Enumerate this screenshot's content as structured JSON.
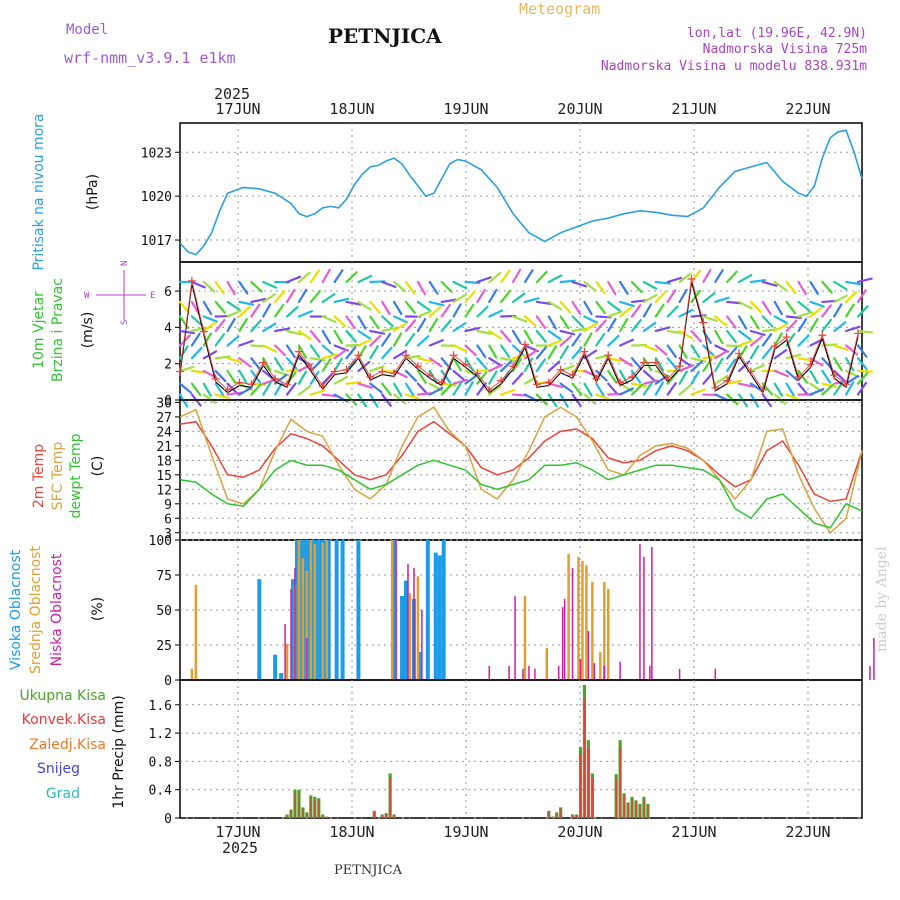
{
  "header": {
    "model_label": "Model",
    "model_name": "wrf-nmm_v3.9.1 e1km",
    "station_title": "PETNJICA",
    "app_title": "Meteogram",
    "coords": "lon,lat (19.96E, 42.9N)",
    "elevation": "Nadmorska Visina 725m",
    "model_elevation": "Nadmorska Visina u modelu 838.931m",
    "footer_station": "PETNJICA",
    "watermark": "made by Angel"
  },
  "colors": {
    "pressure": "#2b9fe0",
    "temp2m": "#e8453c",
    "sfc": "#d9a441",
    "dewpt": "#2fc52f",
    "high_cloud": "#1e9be6",
    "mid_cloud": "#e0a030",
    "low_cloud": "#cc1f9f",
    "total_precip": "#4aa628",
    "conv_precip": "#e63c3c",
    "strat_precip": "#e87a24",
    "snow": "#4444cc",
    "graupel": "#2fb8b8",
    "model_label": "#9b5cd1",
    "app_title": "#e8b860",
    "coords_text": "#a844c8"
  },
  "chart_data": [
    {
      "type": "line",
      "panel": "pressure",
      "xticks_top": [
        "17JUN",
        "18JUN",
        "19JUN",
        "20JUN",
        "21JUN",
        "22JUN"
      ],
      "year_label": "2025",
      "ylabel": [
        "Pritisak na nivou mora",
        "(hPa)"
      ],
      "yticks": [
        1017,
        1020,
        1023
      ],
      "ylim": [
        1015.5,
        1025
      ],
      "x": [
        0,
        2,
        4,
        6,
        8,
        10,
        12,
        16,
        20,
        24,
        28,
        30,
        32,
        34,
        36,
        38,
        40,
        42,
        44,
        46,
        48,
        50,
        52,
        54,
        56,
        58,
        60,
        62,
        64,
        66,
        68,
        70,
        72,
        76,
        80,
        84,
        88,
        92,
        96,
        100,
        104,
        108,
        112,
        116,
        120,
        124,
        128,
        132,
        136,
        140,
        144,
        148,
        152,
        156,
        158,
        160,
        162,
        164,
        166,
        168,
        170,
        172,
        144.5
      ],
      "series": [
        {
          "name": "pressure",
          "values": [
            1016.8,
            1016.2,
            1016.0,
            1016.6,
            1017.5,
            1019.0,
            1020.2,
            1020.6,
            1020.5,
            1020.2,
            1019.5,
            1018.8,
            1018.6,
            1018.8,
            1019.2,
            1019.3,
            1019.2,
            1019.8,
            1020.8,
            1021.5,
            1022.0,
            1022.1,
            1022.4,
            1022.6,
            1022.2,
            1021.4,
            1020.7,
            1020.0,
            1020.2,
            1021.2,
            1022.2,
            1022.5,
            1022.4,
            1021.8,
            1020.6,
            1018.8,
            1017.5,
            1016.9,
            1017.5,
            1017.9,
            1018.3,
            1018.5,
            1018.8,
            1019.0,
            1018.9,
            1018.7,
            1018.6,
            1019.2,
            1020.6,
            1021.7,
            1022.0,
            1022.3,
            1021.0,
            1020.2,
            1020.0,
            1020.7,
            1022.6,
            1024.0,
            1024.4,
            1024.5,
            1023.0,
            1021.2,
            1021.8
          ]
        }
      ]
    },
    {
      "type": "line",
      "panel": "wind",
      "ylabel": [
        "10m Vjetar",
        "Brzina i Pravac",
        "(m/s)"
      ],
      "direction_legend": [
        "W",
        "E",
        "S",
        "N"
      ],
      "yticks": [
        0,
        2,
        4,
        6
      ],
      "ylim": [
        0,
        7.6
      ],
      "x": [
        0,
        3,
        6,
        9,
        12,
        15,
        18,
        21,
        24,
        27,
        30,
        33,
        36,
        39,
        42,
        45,
        48,
        51,
        54,
        57,
        60,
        63,
        66,
        69,
        72,
        75,
        78,
        81,
        84,
        87,
        90,
        93,
        96,
        99,
        102,
        105,
        108,
        111,
        114,
        117,
        120,
        123,
        126,
        129,
        132,
        135,
        138,
        141,
        144,
        147,
        150,
        153,
        156,
        159,
        162,
        165,
        168,
        171
      ],
      "series": [
        {
          "name": "speed",
          "values": [
            1.4,
            6.4,
            3.6,
            1.0,
            0.4,
            0.8,
            0.7,
            1.9,
            1.0,
            0.7,
            2.5,
            1.6,
            0.6,
            1.4,
            1.5,
            2.3,
            1.1,
            1.4,
            1.3,
            2.3,
            1.7,
            1.2,
            0.8,
            2.3,
            1.8,
            1.3,
            0.4,
            0.9,
            1.7,
            2.9,
            0.7,
            0.8,
            1.5,
            1.2,
            2.5,
            1.0,
            2.3,
            0.8,
            1.1,
            1.9,
            1.9,
            1.0,
            1.7,
            6.5,
            4.1,
            0.5,
            0.9,
            2.4,
            1.4,
            0.4,
            2.8,
            3.3,
            1.1,
            1.8,
            3.4,
            1.2,
            0.7,
            3.5
          ]
        }
      ]
    },
    {
      "type": "line",
      "panel": "temperature",
      "ylabel": [
        "2m Temp",
        "SFC Temp",
        "dewpt Temp",
        "(C)"
      ],
      "yticks": [
        3,
        6,
        9,
        12,
        15,
        18,
        21,
        24,
        27,
        30
      ],
      "ylim": [
        1.5,
        30.5
      ],
      "x": [
        0,
        4,
        8,
        12,
        16,
        20,
        24,
        28,
        32,
        36,
        40,
        44,
        48,
        52,
        56,
        60,
        64,
        68,
        72,
        76,
        80,
        84,
        88,
        92,
        96,
        100,
        104,
        108,
        112,
        116,
        120,
        124,
        128,
        132,
        136,
        140,
        144,
        148,
        152,
        156,
        160,
        164,
        168,
        172
      ],
      "series": [
        {
          "name": "2m Temp",
          "values": [
            25.5,
            26,
            21,
            15,
            14.5,
            16,
            20.5,
            23.5,
            22.5,
            21,
            18,
            15,
            14,
            15,
            19,
            24,
            26,
            23.5,
            21,
            16.5,
            15,
            16,
            18.5,
            22,
            24,
            24.5,
            22.5,
            18.5,
            17.5,
            18,
            20,
            21,
            20,
            18,
            15,
            12.5,
            14,
            20,
            22,
            17,
            11,
            9.5,
            10,
            20
          ]
        },
        {
          "name": "SFC Temp",
          "values": [
            27,
            28.5,
            19,
            10,
            9,
            12,
            20,
            26.5,
            24,
            23,
            17,
            12,
            10,
            13,
            21,
            27,
            29,
            24,
            21,
            12,
            10,
            14,
            20,
            27,
            29,
            27,
            22,
            16,
            15,
            19,
            21,
            21.5,
            20.5,
            18,
            14,
            10,
            14,
            24,
            24.5,
            15,
            8,
            3,
            6,
            20
          ]
        },
        {
          "name": "dewpt Temp",
          "values": [
            14,
            13.5,
            11,
            9,
            8.5,
            12,
            16,
            18,
            17,
            17,
            16,
            14,
            12,
            13,
            15,
            17,
            18,
            17,
            16,
            13,
            12,
            13,
            14,
            17,
            17,
            17.5,
            16,
            14,
            15,
            16,
            17,
            17,
            16.5,
            16,
            14,
            8,
            6,
            10,
            11,
            8,
            5,
            4,
            9,
            7.5
          ]
        }
      ]
    },
    {
      "type": "bar",
      "panel": "cloud",
      "ylabel": [
        "Visoka Oblacnost",
        "Srednja Oblacnost",
        "Niska Oblacnost",
        "(%)"
      ],
      "yticks": [
        0,
        25,
        50,
        75,
        100
      ],
      "ylim": [
        0,
        100
      ],
      "series": [
        {
          "name": "Visoka Oblacnost",
          "x": [
            20,
            24,
            25.5,
            28.5,
            29.5,
            30.5,
            31.5,
            32.5,
            33.5,
            34.5,
            35.5,
            36.5,
            37.5,
            39.5,
            41,
            45,
            54,
            56,
            57,
            59,
            60.5,
            62.5,
            64.5,
            65.5,
            66.5
          ],
          "values": [
            72,
            18,
            5,
            72,
            100,
            100,
            100,
            100,
            100,
            100,
            100,
            100,
            100,
            100,
            100,
            100,
            100,
            60,
            71,
            58,
            20,
            100,
            91,
            89,
            100
          ]
        },
        {
          "name": "Srednja Oblacnost",
          "x": [
            3,
            4,
            27,
            29,
            30,
            31,
            32,
            33,
            34,
            36,
            37,
            53.5,
            58,
            60,
            87,
            92.5,
            98,
            100.5,
            101.5,
            102.5,
            104,
            106,
            107,
            108
          ],
          "values": [
            8,
            68,
            26,
            68,
            100,
            87,
            78,
            100,
            97,
            98,
            100,
            100,
            62,
            74,
            60,
            23,
            90,
            88,
            85,
            82,
            70,
            20,
            70,
            65
          ]
        },
        {
          "name": "Niska Oblacnost",
          "x": [
            26.5,
            28,
            29,
            32,
            54.5,
            57.5,
            59,
            61,
            78,
            83,
            84.5,
            86.5,
            88,
            89.5,
            95.5,
            96.5,
            97,
            99,
            101,
            103,
            104.5,
            107,
            111,
            116,
            117,
            118.5,
            119,
            126,
            135,
            174,
            175
          ],
          "values": [
            40,
            65,
            80,
            30,
            100,
            83,
            80,
            50,
            10,
            10,
            60,
            8,
            10,
            8,
            10,
            52,
            58,
            80,
            15,
            35,
            12,
            10,
            13,
            97,
            88,
            10,
            95,
            8,
            8,
            10,
            30
          ]
        }
      ]
    },
    {
      "type": "bar",
      "panel": "precipitation",
      "ylabel": [
        "Ukupna Kisa",
        "Konvek.Kisa",
        "Zaledj.Kisa",
        "Snijeg",
        "Grad",
        "1hr Precip (mm)"
      ],
      "yticks": [
        0,
        0.4,
        0.8,
        1.2,
        1.6
      ],
      "ylim": [
        0,
        1.95
      ],
      "xticks_bottom": [
        "17JUN",
        "18JUN",
        "19JUN",
        "20JUN",
        "21JUN",
        "22JUN"
      ],
      "year_label": "2025",
      "series": [
        {
          "name": "Ukupna Kisa",
          "x": [
            27,
            28,
            29,
            30,
            31,
            32,
            33,
            34,
            35,
            36,
            37,
            38,
            39,
            40,
            41,
            42,
            43,
            44,
            45,
            46,
            47,
            48,
            49,
            50,
            51,
            52,
            53,
            54,
            55,
            56,
            57,
            58,
            59,
            60,
            61,
            62,
            63,
            64,
            65,
            66,
            67,
            68,
            69,
            70,
            71,
            72,
            73,
            74,
            75,
            76,
            77,
            78,
            79,
            80,
            81,
            82,
            83,
            84,
            85,
            86,
            87,
            88,
            89,
            90,
            91,
            92,
            93,
            94,
            95,
            96,
            97,
            98,
            99,
            100,
            101,
            102,
            103,
            104,
            105,
            106,
            107,
            108,
            109,
            110,
            111,
            112,
            113,
            114,
            115,
            116,
            117,
            118,
            119,
            120
          ],
          "values": [
            0.05,
            0.12,
            0.4,
            0.4,
            0.15,
            0.08,
            0.32,
            0.3,
            0.28,
            0.05,
            0.02,
            0.0,
            0.0,
            0.0,
            0.0,
            0.0,
            0.0,
            0.0,
            0.0,
            0.0,
            0.0,
            0.0,
            0.1,
            0.0,
            0.05,
            0.07,
            0.63,
            0.05,
            0.0,
            0.0,
            0.0,
            0.0,
            0.0,
            0.0,
            0.0,
            0.0,
            0.0,
            0.0,
            0.0,
            0.0,
            0.0,
            0.0,
            0.0,
            0.0,
            0.0,
            0.0,
            0.0,
            0.0,
            0.0,
            0.0,
            0.0,
            0.0,
            0.0,
            0.0,
            0.0,
            0.0,
            0.0,
            0.0,
            0.0,
            0.0,
            0.0,
            0.0,
            0.0,
            0.0,
            0.0,
            0.0,
            0.1,
            0.02,
            0.08,
            0.15,
            0.0,
            0.0,
            0.05,
            0.05,
            1.0,
            1.88,
            1.1,
            0.63,
            0.0,
            0.0,
            0.0,
            0.0,
            0.0,
            0.62,
            1.1,
            0.35,
            0.22,
            0.3,
            0.25,
            0.2,
            0.3,
            0.2,
            0.0,
            0.0
          ]
        }
      ]
    }
  ]
}
